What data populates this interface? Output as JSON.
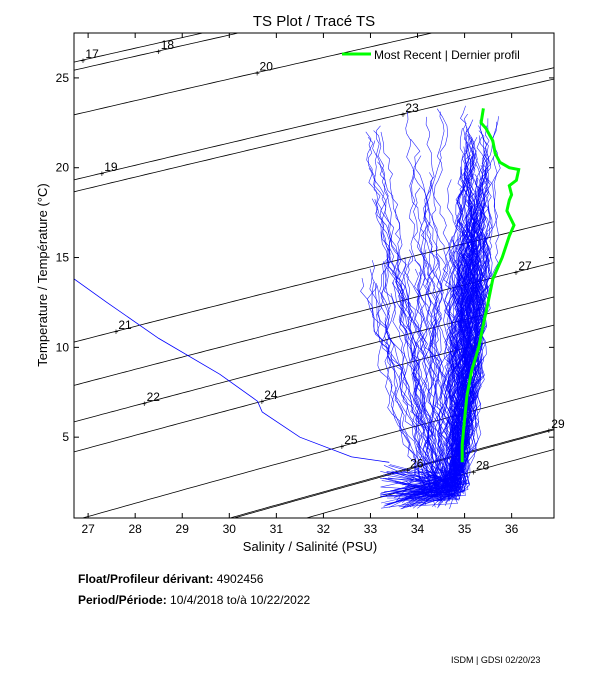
{
  "chart_data": {
    "type": "line",
    "title": "TS Plot / Tracé TS",
    "xlabel": "Salinity / Salinité (PSU)",
    "ylabel": "Temperature / Température (°C)",
    "xlim": [
      26.7,
      36.9
    ],
    "ylim": [
      0.5,
      27.5
    ],
    "xticks": [
      27,
      28,
      29,
      30,
      31,
      32,
      33,
      34,
      35,
      36
    ],
    "yticks": [
      5,
      10,
      15,
      20,
      25
    ],
    "grid": false,
    "legend_position": "top-right",
    "density_contours": [
      {
        "label": "17",
        "label_at": [
          26.9,
          26.0
        ]
      },
      {
        "label": "18",
        "label_at": [
          28.5,
          26.5
        ]
      },
      {
        "label": "19",
        "label_at": [
          27.3,
          19.7
        ]
      },
      {
        "label": "20",
        "label_at": [
          30.6,
          25.3
        ]
      },
      {
        "label": "21",
        "label_at": [
          27.6,
          10.9
        ]
      },
      {
        "label": "22",
        "label_at": [
          28.2,
          6.9
        ]
      },
      {
        "label": "23",
        "label_at": [
          33.7,
          23.0
        ]
      },
      {
        "label": "24",
        "label_at": [
          30.7,
          7.0
        ]
      },
      {
        "label": "25",
        "label_at": [
          32.4,
          4.5
        ]
      },
      {
        "label": "26",
        "label_at": [
          33.8,
          3.2
        ]
      },
      {
        "label": "27",
        "label_at": [
          36.1,
          14.2
        ]
      },
      {
        "label": "28",
        "label_at": [
          35.2,
          3.1
        ]
      },
      {
        "label": "29",
        "label_at": [
          36.8,
          5.4
        ]
      }
    ],
    "series": [
      {
        "name": "Most Recent | Dernier profil",
        "color": "#00ff00",
        "x": [
          35.4,
          35.35,
          35.45,
          35.6,
          35.65,
          35.75,
          35.95,
          36.15,
          36.1,
          35.95,
          36.0,
          35.95,
          35.9,
          36.05,
          35.95,
          35.8,
          35.6,
          35.5,
          35.4,
          35.3,
          35.15,
          35.05,
          35.0,
          34.95,
          34.95
        ],
        "y": [
          23.3,
          22.5,
          22.2,
          21.5,
          20.8,
          20.3,
          20.0,
          19.9,
          19.3,
          19.0,
          18.5,
          18.2,
          17.6,
          16.8,
          16.2,
          15.0,
          13.8,
          12.5,
          11.3,
          10.0,
          8.7,
          7.3,
          6.0,
          4.6,
          3.6
        ]
      }
    ]
  },
  "float_info": {
    "label": "Float/Profileur dérivant:",
    "value": "4902456"
  },
  "period_info": {
    "label": "Period/Période:",
    "start": "10/4/2018",
    "separator": "to/à",
    "end": "10/22/2022"
  },
  "footer": "ISDM | GDSI 02/20/23",
  "colors": {
    "profiles": "#0000ff",
    "most_recent": "#00ff00",
    "contours": "#000000"
  }
}
